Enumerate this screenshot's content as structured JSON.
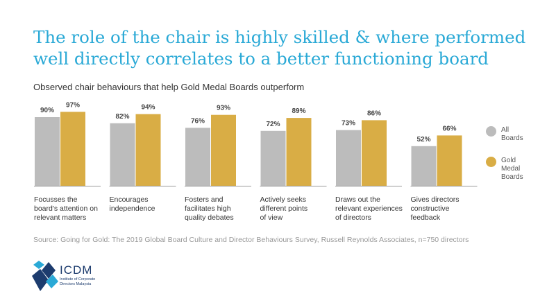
{
  "header": {
    "title": "The role of the chair is highly skilled & where performed well directly correlates to a better functioning board",
    "subtitle": "Observed chair behaviours that help Gold Medal Boards outperform"
  },
  "source": "Source: Going for Gold: The 2019 Global Board Culture and Director Behaviours Survey, Russell Reynolds Associates, n=750 directors",
  "logo": {
    "name": "ICDM",
    "subtitle_lines": [
      "Institute of Corporate",
      "Directors Malaysia"
    ],
    "colors": [
      "#1d3c6e",
      "#2aa9d6"
    ]
  },
  "legend": {
    "placement": "right",
    "items": [
      {
        "lines": [
          "All",
          "Boards"
        ],
        "color": "#bcbcbc"
      },
      {
        "lines": [
          "Gold",
          "Medal",
          "Boards"
        ],
        "color": "#d9ad45"
      }
    ]
  },
  "chart_data": {
    "type": "bar",
    "categories": [
      [
        "Focusses the",
        "board's attention on",
        "relevant matters"
      ],
      [
        "Encourages",
        "independence"
      ],
      [
        "Fosters and",
        "facilitates high",
        "quality debates"
      ],
      [
        "Actively seeks",
        "different points",
        "of view"
      ],
      [
        "Draws out the",
        "relevant experiences",
        "of directors"
      ],
      [
        "Gives directors",
        "constructive",
        "feedback"
      ]
    ],
    "series": [
      {
        "name": "All Boards",
        "values": [
          90,
          82,
          76,
          72,
          73,
          52
        ],
        "labels": [
          "90%",
          "82%",
          "76%",
          "72%",
          "73%",
          "52%"
        ],
        "color": "#bcbcbc"
      },
      {
        "name": "Gold Medal Boards",
        "values": [
          97,
          94,
          93,
          89,
          86,
          66
        ],
        "labels": [
          "97%",
          "94%",
          "93%",
          "89%",
          "86%",
          "66%"
        ],
        "color": "#d9ad45"
      }
    ],
    "ylim": [
      0,
      100
    ],
    "grid": false,
    "baseline_color": "#999999"
  }
}
